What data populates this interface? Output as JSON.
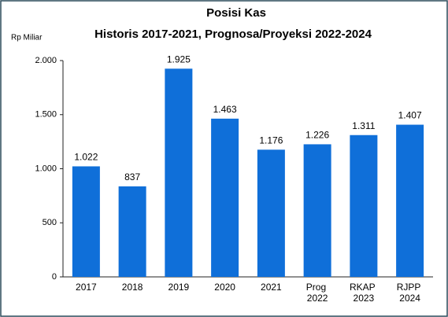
{
  "chart_data": {
    "type": "bar",
    "title": "Posisi Kas",
    "subtitle": "Historis 2017-2021, Prognosa/Proyeksi 2022-2024",
    "y_label": "Rp Miliar",
    "categories": [
      "2017",
      "2018",
      "2019",
      "2020",
      "2021",
      "Prog 2022",
      "RKAP 2023",
      "RJPP 2024"
    ],
    "values": [
      1022,
      837,
      1925,
      1463,
      1176,
      1226,
      1311,
      1407
    ],
    "value_labels": [
      "1.022",
      "837",
      "1.925",
      "1.463",
      "1.176",
      "1.226",
      "1.311",
      "1.407"
    ],
    "color": "#0f6fd9",
    "ylim": [
      0,
      2000
    ],
    "yticks": [
      0,
      500,
      {
        "value": 1000,
        "label": "1.000"
      },
      {
        "value": 1500,
        "label": "1.500"
      },
      {
        "value": 2000,
        "label": "2.000"
      }
    ],
    "grid": false
  }
}
